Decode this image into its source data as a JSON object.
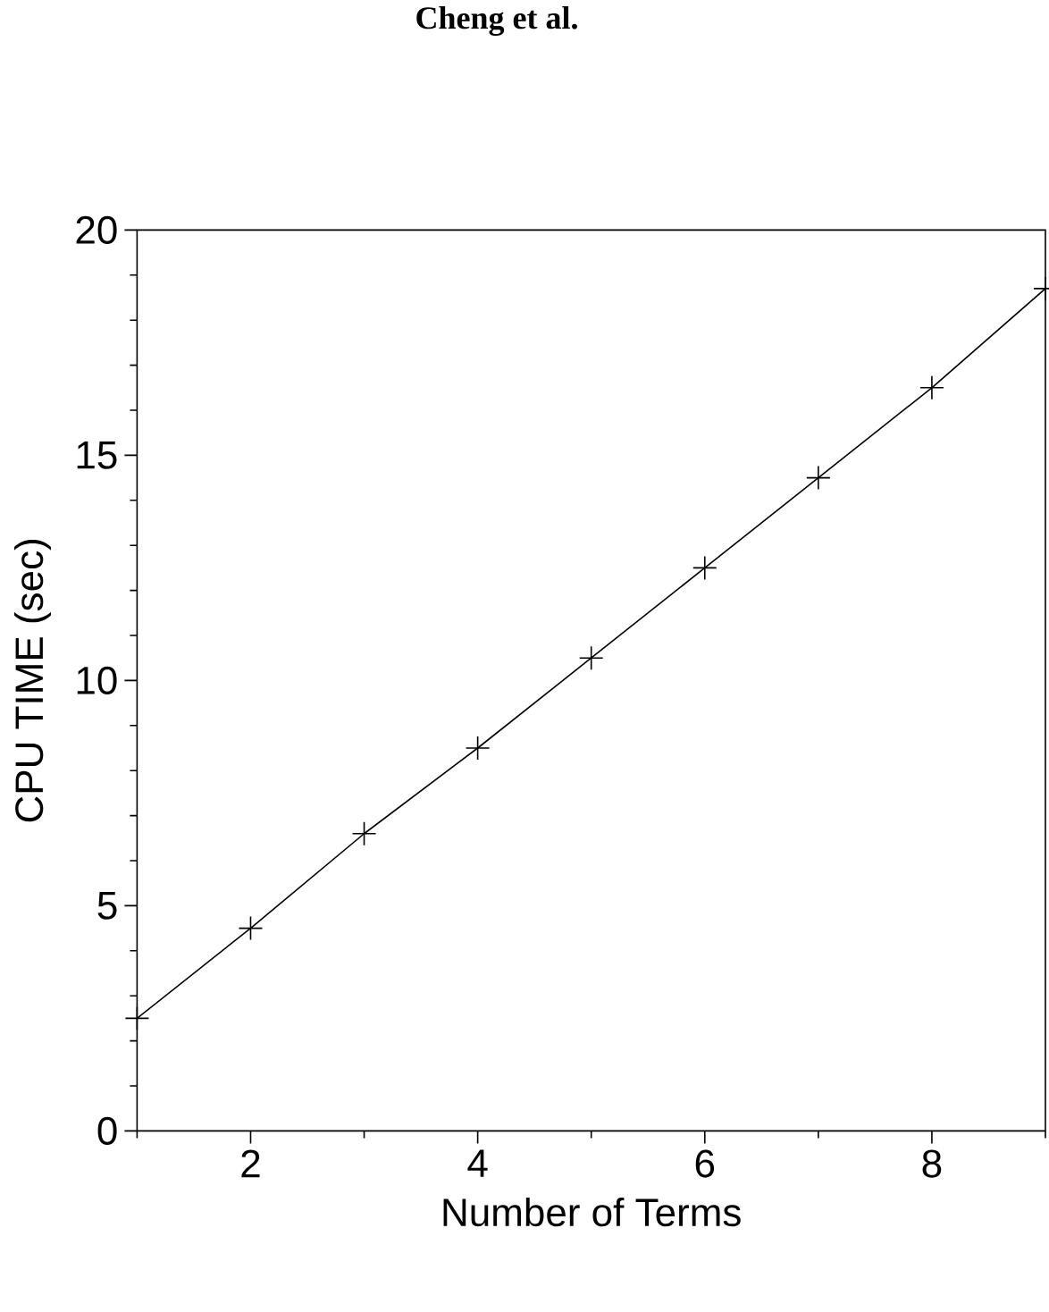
{
  "chart_data": {
    "type": "line",
    "xlabel": "Number of Terms",
    "ylabel": "CPU TIME (sec)",
    "annotations": [
      "Cheng et al."
    ],
    "x": [
      1,
      2,
      3,
      4,
      5,
      6,
      7,
      8,
      9
    ],
    "values": [
      2.5,
      4.5,
      6.6,
      8.5,
      10.5,
      12.5,
      14.5,
      16.5,
      18.7
    ],
    "color": "#000000",
    "marker": "cross",
    "line_style": "solid",
    "legend": false,
    "grid": false,
    "xlim": [
      1,
      9
    ],
    "ylim": [
      0,
      20
    ],
    "xticks": [
      {
        "value": 1,
        "label": null
      },
      2,
      {
        "value": 3,
        "label": null
      },
      4,
      {
        "value": 5,
        "label": null
      },
      6,
      {
        "value": 7,
        "label": null
      },
      8,
      {
        "value": 9,
        "label": null
      }
    ],
    "yticks": [
      0,
      {
        "value": 1,
        "label": null
      },
      {
        "value": 2,
        "label": null
      },
      {
        "value": 3,
        "label": null
      },
      {
        "value": 4,
        "label": null
      },
      5,
      {
        "value": 6,
        "label": null
      },
      {
        "value": 7,
        "label": null
      },
      {
        "value": 8,
        "label": null
      },
      {
        "value": 9,
        "label": null
      },
      10,
      {
        "value": 11,
        "label": null
      },
      {
        "value": 12,
        "label": null
      },
      {
        "value": 13,
        "label": null
      },
      {
        "value": 14,
        "label": null
      },
      15,
      {
        "value": 16,
        "label": null
      },
      {
        "value": 17,
        "label": null
      },
      {
        "value": 18,
        "label": null
      },
      {
        "value": 19,
        "label": null
      },
      20
    ]
  }
}
